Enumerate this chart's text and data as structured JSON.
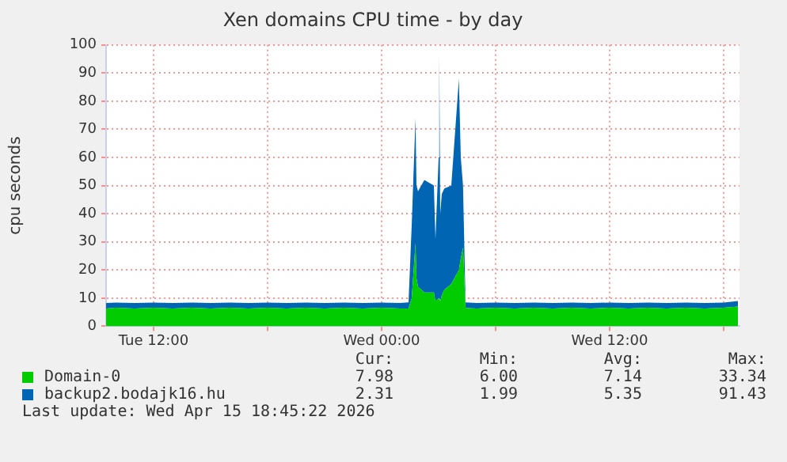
{
  "chart_data": {
    "type": "area",
    "title": "Xen domains CPU time - by day",
    "ylabel": "cpu seconds",
    "stacked": true,
    "grid": true,
    "legend": "bottom",
    "marker": "none",
    "x": [
      "2026-04-14T09:30",
      "2026-04-14T10:00",
      "2026-04-14T11:00",
      "2026-04-14T12:00",
      "2026-04-14T13:00",
      "2026-04-14T14:00",
      "2026-04-14T15:00",
      "2026-04-14T16:00",
      "2026-04-14T17:00",
      "2026-04-14T18:00",
      "2026-04-14T19:00",
      "2026-04-14T20:00",
      "2026-04-14T21:00",
      "2026-04-14T22:00",
      "2026-04-14T23:00",
      "2026-04-15T00:00",
      "2026-04-15T01:00",
      "2026-04-15T01:25",
      "2026-04-15T01:35",
      "2026-04-15T01:47",
      "2026-04-15T01:50",
      "2026-04-15T01:55",
      "2026-04-15T02:15",
      "2026-04-15T02:45",
      "2026-04-15T02:50",
      "2026-04-15T03:00",
      "2026-04-15T03:02",
      "2026-04-15T03:05",
      "2026-04-15T03:10",
      "2026-04-15T03:18",
      "2026-04-15T03:40",
      "2026-04-15T04:04",
      "2026-04-15T04:10",
      "2026-04-15T04:17",
      "2026-04-15T04:25",
      "2026-04-15T05:00",
      "2026-04-15T06:00",
      "2026-04-15T07:00",
      "2026-04-15T08:00",
      "2026-04-15T09:00",
      "2026-04-15T10:00",
      "2026-04-15T11:00",
      "2026-04-15T12:00",
      "2026-04-15T13:00",
      "2026-04-15T14:00",
      "2026-04-15T15:00",
      "2026-04-15T16:00",
      "2026-04-15T17:00",
      "2026-04-15T18:00",
      "2026-04-15T18:45"
    ],
    "series": [
      {
        "name": "Domain-0",
        "color": "#00cc00",
        "values": [
          6.3,
          6.6,
          6.3,
          6.6,
          6.3,
          6.6,
          6.3,
          6.6,
          6.3,
          6.6,
          6.3,
          6.6,
          6.3,
          6.6,
          6.3,
          6.6,
          6.3,
          6.3,
          10,
          29.5,
          17,
          14,
          12,
          12,
          9,
          10,
          10,
          9,
          11,
          13,
          15,
          20,
          24,
          28,
          6.5,
          6.3,
          6.6,
          6.3,
          6.6,
          6.3,
          6.6,
          6.3,
          6.6,
          6.3,
          6.6,
          6.3,
          6.6,
          6.3,
          6.6,
          7
        ]
      },
      {
        "name": "backup2.bodajk16.hu",
        "color": "#0066b3",
        "values": [
          2,
          1.8,
          2,
          1.8,
          2,
          1.8,
          2,
          1.8,
          2,
          1.8,
          2,
          1.8,
          2,
          1.8,
          2,
          1.8,
          2,
          2.2,
          26,
          44.5,
          33,
          34,
          40,
          38,
          22,
          50,
          87,
          31,
          36,
          36,
          35,
          68,
          36,
          22,
          2,
          2,
          1.8,
          2,
          1.8,
          2,
          1.8,
          2,
          1.8,
          2,
          1.8,
          2,
          1.8,
          2,
          1.8,
          2
        ]
      }
    ],
    "xlim": [
      "2026-04-14T09:30",
      "2026-04-15T18:50"
    ],
    "xticks": [
      {
        "value": "2026-04-14T12:00",
        "label": "Tue 12:00"
      },
      {
        "value": "2026-04-14T18:00",
        "label": null
      },
      {
        "value": "2026-04-15T00:00",
        "label": "Wed 00:00"
      },
      {
        "value": "2026-04-15T06:00",
        "label": null
      },
      {
        "value": "2026-04-15T12:00",
        "label": "Wed 12:00"
      },
      {
        "value": "2026-04-15T18:00",
        "label": null
      }
    ],
    "ylim": [
      0,
      100
    ],
    "yticks": [
      0,
      10,
      20,
      30,
      40,
      50,
      60,
      70,
      80,
      90,
      100
    ],
    "annotations": [
      "Cur:",
      "Min:",
      "Avg:",
      "Max:",
      "7.98",
      "6.00",
      "7.14",
      "33.34",
      "2.31",
      "1.99",
      "5.35",
      "91.43",
      "Last update: Wed Apr 15 18:45:22 2026"
    ]
  }
}
